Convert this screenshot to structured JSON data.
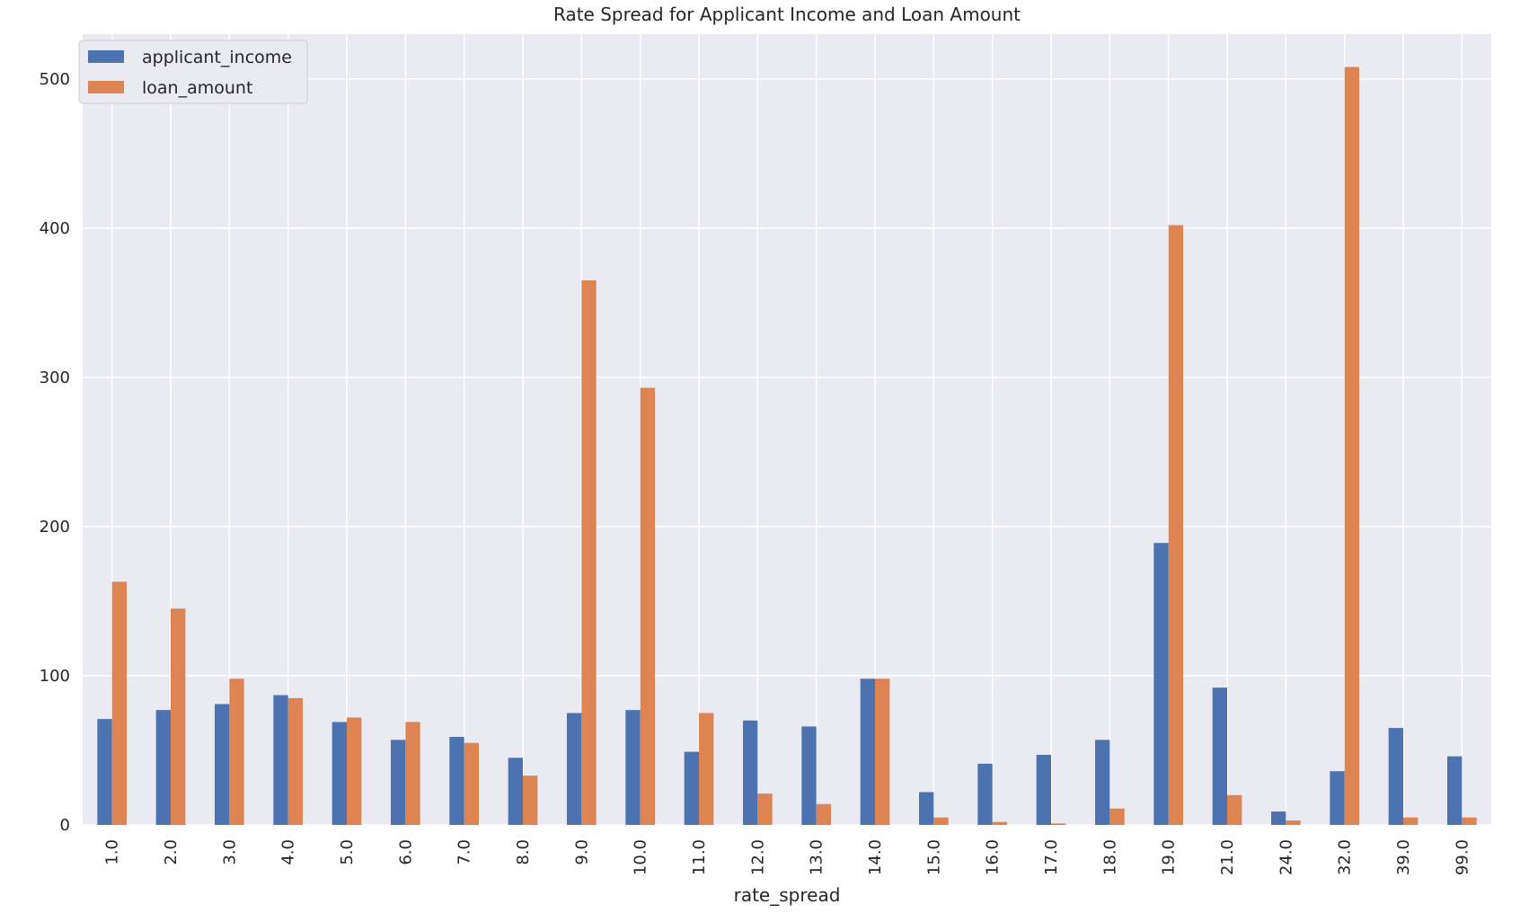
{
  "chart_data": {
    "type": "bar",
    "title": "Rate Spread for Applicant Income and Loan Amount",
    "xlabel": "rate_spread",
    "ylabel": "",
    "ylim": [
      0,
      530
    ],
    "yticks": [
      0,
      100,
      200,
      300,
      400,
      500
    ],
    "grid": true,
    "legend_position": "top-left",
    "categories": [
      "1.0",
      "2.0",
      "3.0",
      "4.0",
      "5.0",
      "6.0",
      "7.0",
      "8.0",
      "9.0",
      "10.0",
      "11.0",
      "12.0",
      "13.0",
      "14.0",
      "15.0",
      "16.0",
      "17.0",
      "18.0",
      "19.0",
      "21.0",
      "24.0",
      "32.0",
      "39.0",
      "99.0"
    ],
    "series": [
      {
        "name": "applicant_income",
        "color": "#4c72b0",
        "values": [
          71,
          77,
          81,
          87,
          69,
          57,
          59,
          45,
          75,
          77,
          49,
          70,
          66,
          98,
          22,
          41,
          47,
          57,
          189,
          92,
          9,
          36,
          65,
          46
        ]
      },
      {
        "name": "loan_amount",
        "color": "#dd8452",
        "values": [
          163,
          145,
          98,
          85,
          72,
          69,
          55,
          33,
          365,
          293,
          75,
          21,
          14,
          98,
          5,
          2,
          1,
          11,
          402,
          20,
          3,
          508,
          5,
          5
        ]
      }
    ]
  },
  "colors": {
    "plot_background": "#eaeaf2",
    "grid": "#ffffff",
    "text": "#262626"
  }
}
